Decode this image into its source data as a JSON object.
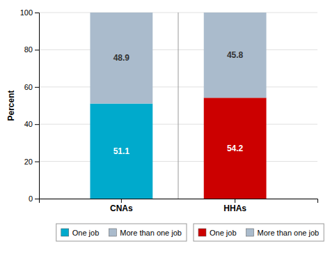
{
  "chart_data": {
    "type": "bar",
    "stacked": true,
    "categories": [
      "CNAs",
      "HHAs"
    ],
    "series": [
      {
        "name": "One job",
        "colors": [
          "#00AACC",
          "#CC0000"
        ],
        "values": [
          51.1,
          54.2
        ]
      },
      {
        "name": "More than one job",
        "colors": [
          "#AABBCC",
          "#AABBCC"
        ],
        "values": [
          48.9,
          45.8
        ]
      }
    ],
    "ylabel": "Percent",
    "ylim": [
      0,
      100
    ],
    "yticks": [
      0,
      20,
      40,
      60,
      80,
      100
    ],
    "grid": true,
    "data_labels": true,
    "legend": "bottom"
  }
}
